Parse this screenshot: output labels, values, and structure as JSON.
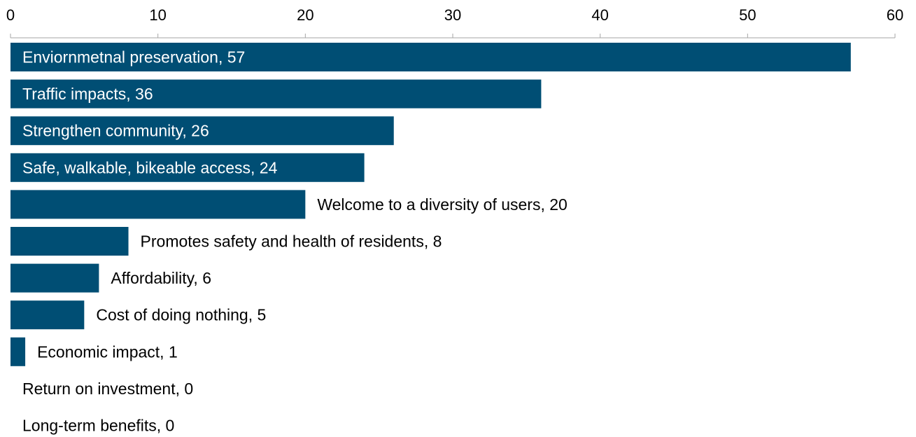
{
  "chart_data": {
    "type": "bar",
    "orientation": "horizontal",
    "axis_position": "top",
    "xlim": [
      0,
      60
    ],
    "x_ticks": [
      0,
      10,
      20,
      30,
      40,
      50,
      60
    ],
    "grid": false,
    "bar_color": "#004e74",
    "label_inside_color": "#ffffff",
    "label_outside_color": "#000000",
    "categories": [
      "Enviornmetnal preservation",
      "Traffic impacts",
      "Strengthen community",
      "Safe, walkable, bikeable access",
      "Welcome to a diversity of users",
      "Promotes safety and health of residents",
      "Affordability",
      "Cost of doing nothing",
      "Economic impact",
      "Return on investment",
      "Long-term benefits"
    ],
    "values": [
      57,
      36,
      26,
      24,
      20,
      8,
      6,
      5,
      1,
      0,
      0
    ],
    "data_labels": [
      "Enviornmetnal preservation, 57",
      "Traffic impacts, 36",
      "Strengthen community, 26",
      "Safe, walkable, bikeable access, 24",
      "Welcome to a diversity of users, 20",
      "Promotes safety and health of residents, 8",
      "Affordability, 6",
      "Cost of doing nothing, 5",
      "Economic impact, 1",
      "Return on investment, 0",
      "Long-term benefits, 0"
    ],
    "labels_inside_bar": [
      true,
      true,
      true,
      true,
      false,
      false,
      false,
      false,
      false,
      false,
      false
    ]
  }
}
